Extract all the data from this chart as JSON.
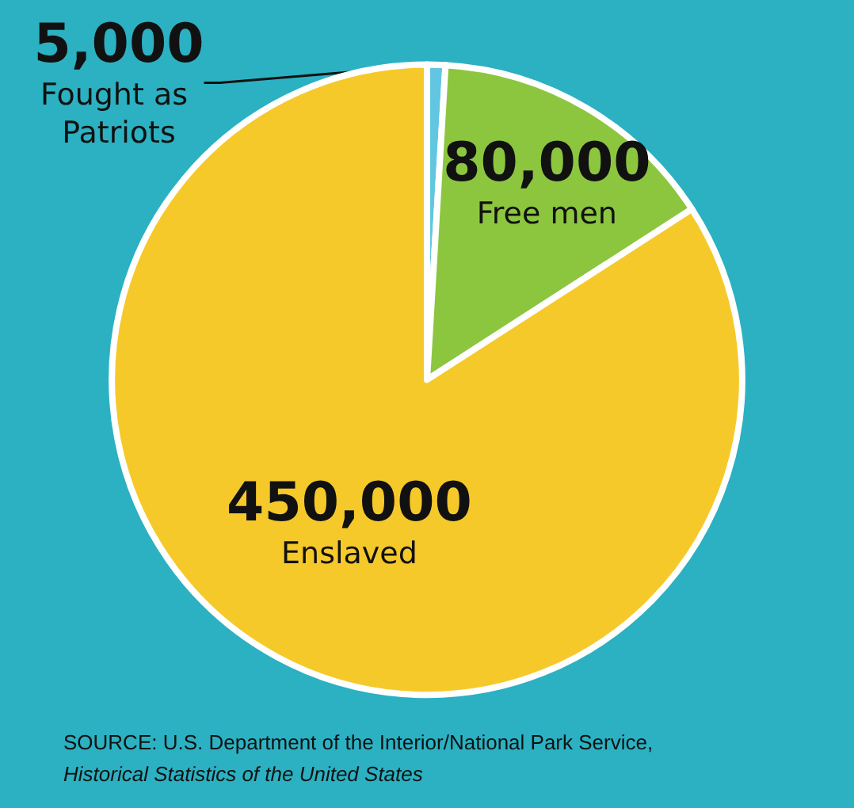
{
  "chart_data": {
    "type": "pie",
    "categories": [
      "Fought as Patriots",
      "Free men",
      "Enslaved"
    ],
    "values": [
      5000,
      80000,
      450000
    ],
    "value_labels": [
      "5,000",
      "80,000",
      "450,000"
    ],
    "colors": [
      "#62c6e2",
      "#8cc63f",
      "#f6c92a"
    ],
    "annotations": [
      "SOURCE: U.S. Department of the Interior/National Park Service,",
      "Historical Statistics of the United States"
    ]
  }
}
